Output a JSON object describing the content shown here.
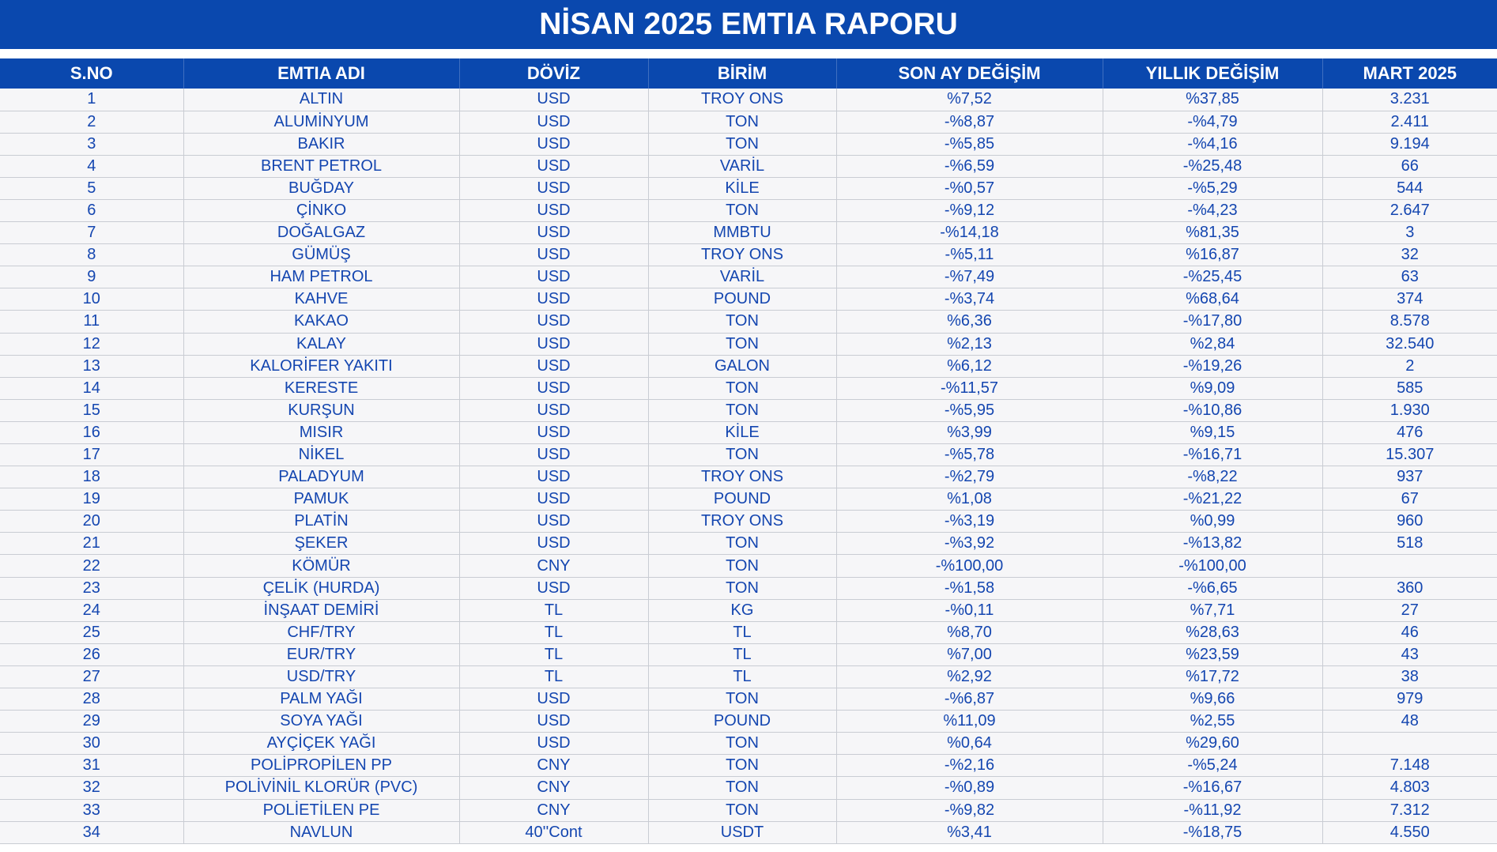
{
  "title": "NİSAN 2025 EMTIA RAPORU",
  "columns": [
    "S.NO",
    "EMTIA ADI",
    "DÖVİZ",
    "BİRİM",
    "SON AY DEĞİŞİM",
    "YILLIK DEĞİŞİM",
    "MART 2025"
  ],
  "rows": [
    [
      "1",
      "ALTIN",
      "USD",
      "TROY ONS",
      "%7,52",
      "%37,85",
      "3.231"
    ],
    [
      "2",
      "ALUMİNYUM",
      "USD",
      "TON",
      "-%8,87",
      "-%4,79",
      "2.411"
    ],
    [
      "3",
      "BAKIR",
      "USD",
      "TON",
      "-%5,85",
      "-%4,16",
      "9.194"
    ],
    [
      "4",
      "BRENT PETROL",
      "USD",
      "VARİL",
      "-%6,59",
      "-%25,48",
      "66"
    ],
    [
      "5",
      "BUĞDAY",
      "USD",
      "KİLE",
      "-%0,57",
      "-%5,29",
      "544"
    ],
    [
      "6",
      "ÇİNKO",
      "USD",
      "TON",
      "-%9,12",
      "-%4,23",
      "2.647"
    ],
    [
      "7",
      "DOĞALGAZ",
      "USD",
      "MMBTU",
      "-%14,18",
      "%81,35",
      "3"
    ],
    [
      "8",
      "GÜMÜŞ",
      "USD",
      "TROY ONS",
      "-%5,11",
      "%16,87",
      "32"
    ],
    [
      "9",
      "HAM PETROL",
      "USD",
      "VARİL",
      "-%7,49",
      "-%25,45",
      "63"
    ],
    [
      "10",
      "KAHVE",
      "USD",
      "POUND",
      "-%3,74",
      "%68,64",
      "374"
    ],
    [
      "11",
      "KAKAO",
      "USD",
      "TON",
      "%6,36",
      "-%17,80",
      "8.578"
    ],
    [
      "12",
      "KALAY",
      "USD",
      "TON",
      "%2,13",
      "%2,84",
      "32.540"
    ],
    [
      "13",
      "KALORİFER YAKITI",
      "USD",
      "GALON",
      "%6,12",
      "-%19,26",
      "2"
    ],
    [
      "14",
      "KERESTE",
      "USD",
      "TON",
      "-%11,57",
      "%9,09",
      "585"
    ],
    [
      "15",
      "KURŞUN",
      "USD",
      "TON",
      "-%5,95",
      "-%10,86",
      "1.930"
    ],
    [
      "16",
      "MISIR",
      "USD",
      "KİLE",
      "%3,99",
      "%9,15",
      "476"
    ],
    [
      "17",
      "NİKEL",
      "USD",
      "TON",
      "-%5,78",
      "-%16,71",
      "15.307"
    ],
    [
      "18",
      "PALADYUM",
      "USD",
      "TROY ONS",
      "-%2,79",
      "-%8,22",
      "937"
    ],
    [
      "19",
      "PAMUK",
      "USD",
      "POUND",
      "%1,08",
      "-%21,22",
      "67"
    ],
    [
      "20",
      "PLATİN",
      "USD",
      "TROY ONS",
      "-%3,19",
      "%0,99",
      "960"
    ],
    [
      "21",
      "ŞEKER",
      "USD",
      "TON",
      "-%3,92",
      "-%13,82",
      "518"
    ],
    [
      "22",
      "KÖMÜR",
      "CNY",
      "TON",
      "-%100,00",
      "-%100,00",
      ""
    ],
    [
      "23",
      "ÇELİK (HURDA)",
      "USD",
      "TON",
      "-%1,58",
      "-%6,65",
      "360"
    ],
    [
      "24",
      "İNŞAAT DEMİRİ",
      "TL",
      "KG",
      "-%0,11",
      "%7,71",
      "27"
    ],
    [
      "25",
      "CHF/TRY",
      "TL",
      "TL",
      "%8,70",
      "%28,63",
      "46"
    ],
    [
      "26",
      "EUR/TRY",
      "TL",
      "TL",
      "%7,00",
      "%23,59",
      "43"
    ],
    [
      "27",
      "USD/TRY",
      "TL",
      "TL",
      "%2,92",
      "%17,72",
      "38"
    ],
    [
      "28",
      "PALM YAĞI",
      "USD",
      "TON",
      "-%6,87",
      "%9,66",
      "979"
    ],
    [
      "29",
      "SOYA YAĞI",
      "USD",
      "POUND",
      "%11,09",
      "%2,55",
      "48"
    ],
    [
      "30",
      "AYÇİÇEK YAĞI",
      "USD",
      "TON",
      "%0,64",
      "%29,60",
      ""
    ],
    [
      "31",
      "POLİPROPİLEN PP",
      "CNY",
      "TON",
      "-%2,16",
      "-%5,24",
      "7.148"
    ],
    [
      "32",
      "POLİVİNİL KLORÜR (PVC)",
      "CNY",
      "TON",
      "-%0,89",
      "-%16,67",
      "4.803"
    ],
    [
      "33",
      "POLİETİLEN PE",
      "CNY",
      "TON",
      "-%9,82",
      "-%11,92",
      "7.312"
    ],
    [
      "34",
      "NAVLUN",
      "40''Cont",
      "USDT",
      "%3,41",
      "-%18,75",
      "4.550"
    ]
  ]
}
